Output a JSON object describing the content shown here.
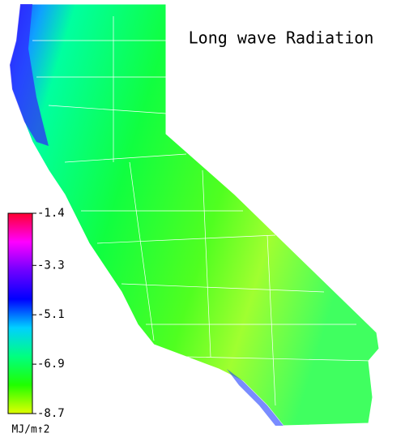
{
  "title": "Long wave Radiation",
  "colorbar": {
    "lim": [
      -8.7,
      -1.4
    ],
    "ticks": [
      -1.4,
      -3.3,
      -5.1,
      -6.9,
      -8.7
    ],
    "label": "MJ/m↑2",
    "colors": [
      "#ff0030",
      "#ff00ff",
      "#7000ff",
      "#0000ff",
      "#00d0ff",
      "#00ff80",
      "#20ff00",
      "#e0ff00"
    ]
  }
}
